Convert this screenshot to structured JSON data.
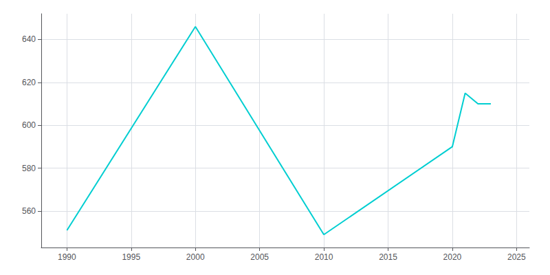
{
  "chart_data": {
    "type": "line",
    "x": [
      1990,
      2000,
      2010,
      2020,
      2021,
      2022,
      2023
    ],
    "values": [
      551,
      646,
      549,
      590,
      615,
      610,
      610
    ],
    "color": "#00CED1",
    "xlim": [
      1988,
      2026
    ],
    "ylim": [
      543,
      652
    ],
    "xticks": [
      1990,
      1995,
      2000,
      2005,
      2010,
      2015,
      2020,
      2025
    ],
    "yticks": [
      560,
      580,
      600,
      620,
      640
    ],
    "grid": true
  }
}
